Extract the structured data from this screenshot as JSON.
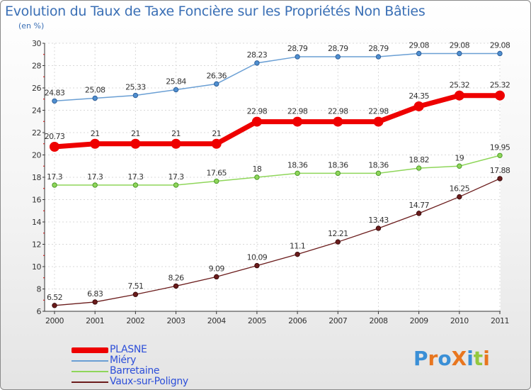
{
  "title": "Evolution du Taux de Taxe Foncière sur les Propriétés Non Bâties",
  "subtitle": "(en %)",
  "logo": "ProXiti",
  "colors": {
    "PLASNE": "#ee0000",
    "Miéry": "#6a9fd4",
    "Barretaine": "#8fd65a",
    "Vaux-sur-Poligny": "#6b1c1c",
    "title": "#3a6fb5",
    "legend_text": "#2d4fd9"
  },
  "chart_data": {
    "type": "line",
    "title": "Evolution du Taux de Taxe Foncière sur les Propriétés Non Bâties",
    "ylabel": "(en %)",
    "xlabel": "",
    "ylim": [
      6,
      30
    ],
    "yticks": [
      6,
      8,
      10,
      12,
      14,
      16,
      18,
      20,
      22,
      24,
      26,
      28,
      30
    ],
    "grid": true,
    "legend_position": "bottom-left",
    "categories": [
      "2000",
      "2001",
      "2002",
      "2003",
      "2004",
      "2005",
      "2006",
      "2007",
      "2008",
      "2009",
      "2010",
      "2011"
    ],
    "series": [
      {
        "name": "PLASNE",
        "values": [
          20.73,
          21,
          21,
          21,
          21,
          22.98,
          22.98,
          22.98,
          22.98,
          24.35,
          25.32,
          25.32
        ],
        "labels": [
          "20.73",
          "21",
          "21",
          "21",
          "21",
          "22.98",
          "22.98",
          "22.98",
          "22.98",
          "24.35",
          "25.32",
          "25.32"
        ]
      },
      {
        "name": "Miéry",
        "values": [
          24.83,
          25.08,
          25.33,
          25.84,
          26.36,
          28.23,
          28.79,
          28.79,
          28.79,
          29.08,
          29.08,
          29.08
        ],
        "labels": [
          "24.83",
          "25.08",
          "25.33",
          "25.84",
          "26.36",
          "28.23",
          "28.79",
          "28.79",
          "28.79",
          "29.08",
          "29.08",
          "29.08"
        ]
      },
      {
        "name": "Barretaine",
        "values": [
          17.3,
          17.3,
          17.3,
          17.3,
          17.65,
          18,
          18.36,
          18.36,
          18.36,
          18.82,
          19,
          19.95
        ],
        "labels": [
          "17.3",
          "17.3",
          "17.3",
          "17.3",
          "17.65",
          "18",
          "18.36",
          "18.36",
          "18.36",
          "18.82",
          "19",
          "19.95"
        ]
      },
      {
        "name": "Vaux-sur-Poligny",
        "values": [
          6.52,
          6.83,
          7.51,
          8.26,
          9.09,
          10.09,
          11.1,
          12.21,
          13.43,
          14.77,
          16.25,
          17.88
        ],
        "labels": [
          "6.52",
          "6.83",
          "7.51",
          "8.26",
          "9.09",
          "10.09",
          "11.1",
          "12.21",
          "13.43",
          "14.77",
          "16.25",
          "17.88"
        ]
      }
    ]
  }
}
